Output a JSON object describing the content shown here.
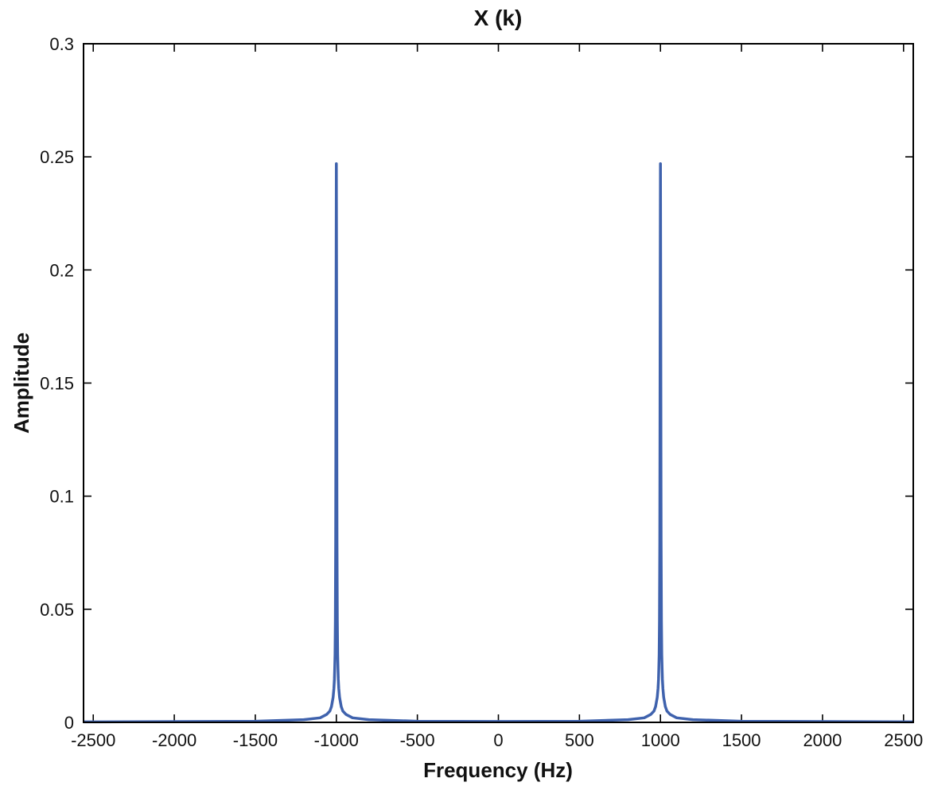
{
  "chart_data": {
    "type": "line",
    "title": "X (k)",
    "xlabel": "Frequency (Hz)",
    "ylabel": "Amplitude",
    "xlim": [
      -2560,
      2560
    ],
    "ylim": [
      0,
      0.3
    ],
    "xticks": [
      -2500,
      -2000,
      -1500,
      -1000,
      -500,
      0,
      500,
      1000,
      1500,
      2000,
      2500
    ],
    "yticks": [
      0,
      0.05,
      0.1,
      0.15,
      0.2,
      0.25,
      0.3
    ],
    "xtick_labels": [
      "-2500",
      "-2000",
      "-1500",
      "-1000",
      "-500",
      "0",
      "500",
      "1000",
      "1500",
      "2000",
      "2500"
    ],
    "ytick_labels": [
      "0",
      "0.05",
      "0.1",
      "0.15",
      "0.2",
      "0.25",
      "0.3"
    ],
    "grid": false,
    "series": [
      {
        "color": "#3f62ad",
        "x": [
          -2560,
          -1500,
          -1200,
          -1100,
          -1060,
          -1040,
          -1030,
          -1020,
          -1015,
          -1012,
          -1010,
          -1008,
          -1006,
          -1004,
          -1003,
          -1002,
          -1000,
          -998,
          -997,
          -996,
          -994,
          -992,
          -990,
          -988,
          -985,
          -980,
          -970,
          -960,
          -940,
          -900,
          -800,
          -500,
          0,
          500,
          800,
          900,
          940,
          960,
          970,
          980,
          985,
          988,
          990,
          992,
          994,
          996,
          997,
          998,
          1000,
          1002,
          1003,
          1004,
          1006,
          1008,
          1010,
          1012,
          1015,
          1020,
          1030,
          1040,
          1060,
          1100,
          1200,
          1500,
          2560
        ],
        "y": [
          0.0002,
          0.0005,
          0.0012,
          0.002,
          0.0035,
          0.005,
          0.007,
          0.011,
          0.015,
          0.019,
          0.024,
          0.03,
          0.045,
          0.08,
          0.12,
          0.17,
          0.247,
          0.17,
          0.12,
          0.08,
          0.045,
          0.03,
          0.024,
          0.019,
          0.015,
          0.011,
          0.007,
          0.005,
          0.0035,
          0.002,
          0.0012,
          0.0005,
          0.0004,
          0.0005,
          0.0012,
          0.002,
          0.0035,
          0.005,
          0.007,
          0.011,
          0.015,
          0.019,
          0.024,
          0.03,
          0.045,
          0.08,
          0.12,
          0.17,
          0.247,
          0.17,
          0.12,
          0.08,
          0.045,
          0.03,
          0.024,
          0.019,
          0.015,
          0.011,
          0.007,
          0.005,
          0.0035,
          0.002,
          0.0012,
          0.0005,
          0.0002
        ]
      }
    ]
  }
}
